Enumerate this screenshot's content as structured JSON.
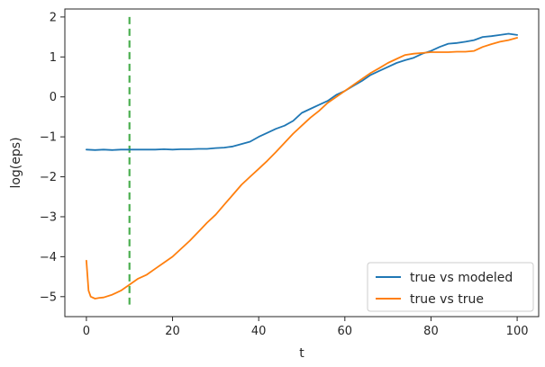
{
  "chart_data": {
    "type": "line",
    "title": "",
    "xlabel": "t",
    "ylabel": "log(eps)",
    "xlim": [
      -5,
      105
    ],
    "ylim": [
      -5.5,
      2.2
    ],
    "xticks": [
      0,
      20,
      40,
      60,
      80,
      100
    ],
    "yticks": [
      -5,
      -4,
      -3,
      -2,
      -1,
      0,
      1,
      2
    ],
    "grid": false,
    "legend_position": "bottom-right",
    "series": [
      {
        "name": "true vs modeled",
        "color": "#1f77b4",
        "x": [
          0,
          2,
          4,
          6,
          8,
          10,
          12,
          14,
          16,
          18,
          20,
          22,
          24,
          26,
          28,
          30,
          32,
          34,
          36,
          38,
          40,
          42,
          44,
          46,
          48,
          50,
          52,
          54,
          56,
          58,
          60,
          62,
          64,
          66,
          68,
          70,
          72,
          74,
          76,
          78,
          80,
          82,
          84,
          86,
          88,
          90,
          92,
          94,
          96,
          98,
          100
        ],
        "y": [
          -1.32,
          -1.33,
          -1.32,
          -1.33,
          -1.32,
          -1.32,
          -1.32,
          -1.32,
          -1.32,
          -1.31,
          -1.32,
          -1.31,
          -1.31,
          -1.3,
          -1.3,
          -1.28,
          -1.27,
          -1.24,
          -1.18,
          -1.12,
          -1.0,
          -0.9,
          -0.8,
          -0.72,
          -0.6,
          -0.4,
          -0.3,
          -0.2,
          -0.1,
          0.05,
          0.15,
          0.28,
          0.4,
          0.55,
          0.65,
          0.75,
          0.85,
          0.92,
          0.98,
          1.08,
          1.15,
          1.25,
          1.33,
          1.35,
          1.38,
          1.42,
          1.5,
          1.52,
          1.55,
          1.58,
          1.55
        ]
      },
      {
        "name": "true vs true",
        "color": "#ff7f0e",
        "x": [
          0,
          0.5,
          1,
          2,
          3,
          4,
          6,
          8,
          10,
          12,
          14,
          16,
          18,
          20,
          22,
          24,
          26,
          28,
          30,
          32,
          34,
          36,
          38,
          40,
          42,
          44,
          46,
          48,
          50,
          52,
          54,
          56,
          58,
          60,
          62,
          64,
          66,
          68,
          70,
          72,
          74,
          76,
          78,
          80,
          82,
          84,
          86,
          88,
          90,
          92,
          94,
          96,
          98,
          100
        ],
        "y": [
          -4.1,
          -4.85,
          -5.0,
          -5.05,
          -5.03,
          -5.02,
          -4.95,
          -4.85,
          -4.7,
          -4.55,
          -4.45,
          -4.3,
          -4.15,
          -4.0,
          -3.8,
          -3.6,
          -3.38,
          -3.15,
          -2.95,
          -2.7,
          -2.45,
          -2.2,
          -2.0,
          -1.8,
          -1.6,
          -1.38,
          -1.15,
          -0.92,
          -0.72,
          -0.52,
          -0.35,
          -0.15,
          0.0,
          0.15,
          0.3,
          0.45,
          0.6,
          0.72,
          0.85,
          0.95,
          1.05,
          1.08,
          1.1,
          1.12,
          1.12,
          1.12,
          1.13,
          1.13,
          1.15,
          1.25,
          1.32,
          1.38,
          1.42,
          1.48
        ]
      }
    ],
    "vline": {
      "x": 10,
      "y_range": [
        -5.2,
        2.0
      ],
      "color": "#4caf50",
      "style": "dashed"
    }
  }
}
